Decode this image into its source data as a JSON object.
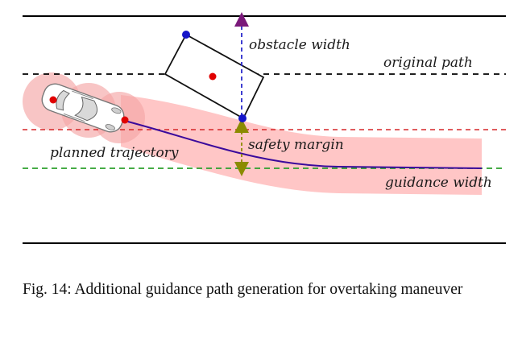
{
  "figure": {
    "labels": {
      "obstacle_width": "obstacle width",
      "original_path": "original path",
      "planned_trajectory": "planned trajectory",
      "safety_margin": "safety margin",
      "guidance_width": "guidance width"
    },
    "colors": {
      "road_edge": "#000000",
      "original_path": "#000000",
      "safety_line": "#d62728",
      "guidance_line": "#2ca02c",
      "trajectory": "#3b0a9c",
      "corridor": "#ffb3b3",
      "obstacle_arrow": "#2a2acc",
      "margin_arrow": "#8b8b00",
      "vehicle_circle": "#f4a6a6",
      "center_point": "#e00000",
      "corner_point": "#1515c8"
    }
  },
  "caption": "Fig. 14: Additional guidance path generation for overtaking maneuver"
}
